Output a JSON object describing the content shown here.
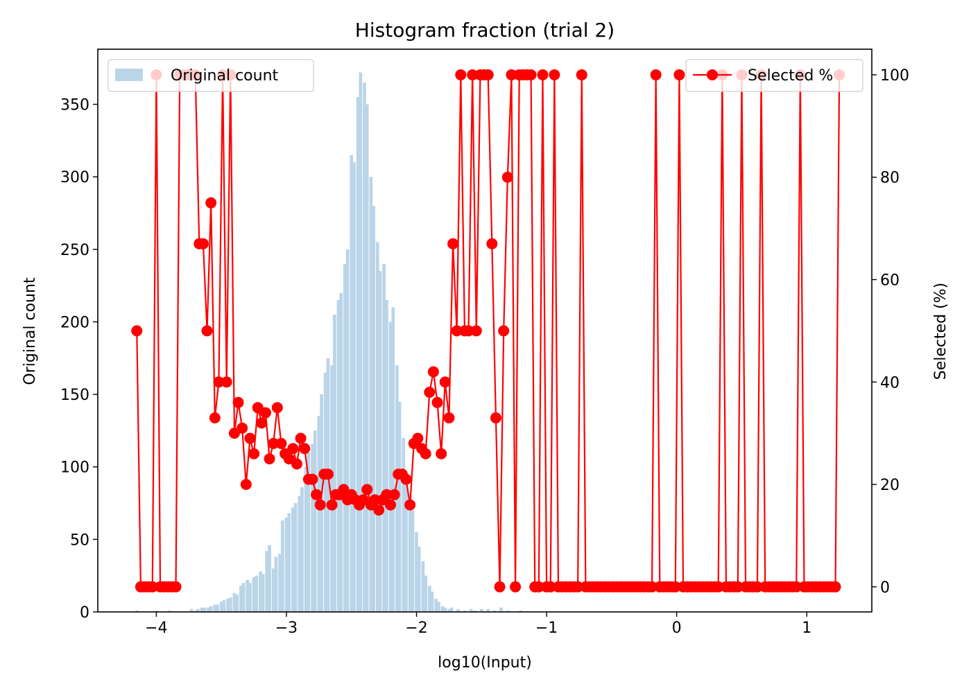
{
  "chart_data": {
    "type": "bar+line",
    "title": "Histogram fraction (trial 2)",
    "xlabel": "log10(Input)",
    "ylabel_left": "Original count",
    "ylabel_right": "Selected (%)",
    "xlim": [
      -4.45,
      1.5
    ],
    "ylim_left": [
      0,
      388
    ],
    "ylim_right": [
      -4.9,
      105
    ],
    "x_ticks": [
      -4,
      -3,
      -2,
      -1,
      0,
      1
    ],
    "x_tick_labels": [
      "−4",
      "−3",
      "−2",
      "−1",
      "0",
      "1"
    ],
    "y_left_ticks": [
      0,
      50,
      100,
      150,
      200,
      250,
      300,
      350
    ],
    "y_left_tick_labels": [
      "0",
      "50",
      "100",
      "150",
      "200",
      "250",
      "300",
      "350"
    ],
    "y_right_ticks": [
      0,
      20,
      40,
      60,
      80,
      100
    ],
    "y_right_tick_labels": [
      "0",
      "20",
      "40",
      "60",
      "80",
      "100"
    ],
    "legend_left": {
      "label": "Original count",
      "placement": "upper-left"
    },
    "legend_right": {
      "label": "Selected %",
      "placement": "upper-right"
    },
    "colors": {
      "histogram": "#bad4e8",
      "line": "#ff0000"
    },
    "histogram": {
      "name": "Original count",
      "bin_width": 0.025,
      "bins": [
        [
          -4.15,
          1
        ],
        [
          -4.0,
          1
        ],
        [
          -3.9,
          1
        ],
        [
          -3.73,
          2
        ],
        [
          -3.7,
          1
        ],
        [
          -3.68,
          2
        ],
        [
          -3.65,
          3
        ],
        [
          -3.63,
          3
        ],
        [
          -3.6,
          3
        ],
        [
          -3.58,
          4
        ],
        [
          -3.55,
          5
        ],
        [
          -3.53,
          5
        ],
        [
          -3.5,
          7
        ],
        [
          -3.48,
          8
        ],
        [
          -3.45,
          9
        ],
        [
          -3.43,
          10
        ],
        [
          -3.4,
          13
        ],
        [
          -3.38,
          12
        ],
        [
          -3.35,
          18
        ],
        [
          -3.33,
          20
        ],
        [
          -3.3,
          22
        ],
        [
          -3.28,
          20
        ],
        [
          -3.25,
          24
        ],
        [
          -3.23,
          25
        ],
        [
          -3.2,
          28
        ],
        [
          -3.18,
          26
        ],
        [
          -3.15,
          42
        ],
        [
          -3.13,
          46
        ],
        [
          -3.1,
          30
        ],
        [
          -3.08,
          38
        ],
        [
          -3.05,
          40
        ],
        [
          -3.03,
          63
        ],
        [
          -3.0,
          65
        ],
        [
          -2.98,
          68
        ],
        [
          -2.95,
          72
        ],
        [
          -2.93,
          75
        ],
        [
          -2.9,
          80
        ],
        [
          -2.88,
          86
        ],
        [
          -2.85,
          100
        ],
        [
          -2.83,
          110
        ],
        [
          -2.8,
          116
        ],
        [
          -2.78,
          125
        ],
        [
          -2.75,
          135
        ],
        [
          -2.73,
          150
        ],
        [
          -2.7,
          165
        ],
        [
          -2.68,
          175
        ],
        [
          -2.65,
          170
        ],
        [
          -2.63,
          205
        ],
        [
          -2.6,
          215
        ],
        [
          -2.58,
          220
        ],
        [
          -2.55,
          240
        ],
        [
          -2.53,
          250
        ],
        [
          -2.5,
          315
        ],
        [
          -2.48,
          310
        ],
        [
          -2.45,
          355
        ],
        [
          -2.43,
          372
        ],
        [
          -2.4,
          365
        ],
        [
          -2.38,
          350
        ],
        [
          -2.35,
          300
        ],
        [
          -2.33,
          280
        ],
        [
          -2.3,
          255
        ],
        [
          -2.28,
          235
        ],
        [
          -2.25,
          240
        ],
        [
          -2.23,
          215
        ],
        [
          -2.2,
          200
        ],
        [
          -2.18,
          210
        ],
        [
          -2.15,
          170
        ],
        [
          -2.13,
          145
        ],
        [
          -2.1,
          120
        ],
        [
          -2.08,
          95
        ],
        [
          -2.05,
          80
        ],
        [
          -2.03,
          70
        ],
        [
          -2.0,
          55
        ],
        [
          -1.98,
          45
        ],
        [
          -1.95,
          35
        ],
        [
          -1.93,
          25
        ],
        [
          -1.9,
          18
        ],
        [
          -1.88,
          14
        ],
        [
          -1.85,
          9
        ],
        [
          -1.83,
          7
        ],
        [
          -1.8,
          4
        ],
        [
          -1.78,
          3
        ],
        [
          -1.75,
          2
        ],
        [
          -1.73,
          3
        ],
        [
          -1.68,
          2
        ],
        [
          -1.63,
          1
        ],
        [
          -1.58,
          2
        ],
        [
          -1.55,
          1
        ],
        [
          -1.5,
          2
        ],
        [
          -1.45,
          2
        ],
        [
          -1.4,
          1
        ],
        [
          -1.35,
          3
        ],
        [
          -1.3,
          1
        ],
        [
          -1.2,
          1
        ]
      ]
    },
    "series": [
      {
        "name": "Selected %",
        "points": [
          [
            -4.15,
            50
          ],
          [
            -4.12,
            0
          ],
          [
            -4.09,
            0
          ],
          [
            -4.06,
            0
          ],
          [
            -4.03,
            0
          ],
          [
            -4.0,
            100
          ],
          [
            -3.97,
            0
          ],
          [
            -3.94,
            0
          ],
          [
            -3.91,
            0
          ],
          [
            -3.88,
            0
          ],
          [
            -3.85,
            0
          ],
          [
            -3.82,
            100
          ],
          [
            -3.79,
            100
          ],
          [
            -3.76,
            100
          ],
          [
            -3.73,
            100
          ],
          [
            -3.7,
            100
          ],
          [
            -3.67,
            67
          ],
          [
            -3.64,
            67
          ],
          [
            -3.61,
            50
          ],
          [
            -3.58,
            75
          ],
          [
            -3.55,
            33
          ],
          [
            -3.52,
            40
          ],
          [
            -3.49,
            100
          ],
          [
            -3.46,
            40
          ],
          [
            -3.43,
            100
          ],
          [
            -3.4,
            30
          ],
          [
            -3.37,
            36
          ],
          [
            -3.34,
            31
          ],
          [
            -3.31,
            20
          ],
          [
            -3.28,
            29
          ],
          [
            -3.25,
            26
          ],
          [
            -3.22,
            35
          ],
          [
            -3.19,
            32
          ],
          [
            -3.16,
            34
          ],
          [
            -3.13,
            25
          ],
          [
            -3.1,
            28
          ],
          [
            -3.07,
            35
          ],
          [
            -3.04,
            28
          ],
          [
            -3.01,
            26
          ],
          [
            -2.98,
            25
          ],
          [
            -2.95,
            27
          ],
          [
            -2.92,
            24
          ],
          [
            -2.89,
            29
          ],
          [
            -2.86,
            27
          ],
          [
            -2.83,
            21
          ],
          [
            -2.8,
            21
          ],
          [
            -2.77,
            18
          ],
          [
            -2.74,
            16
          ],
          [
            -2.71,
            22
          ],
          [
            -2.68,
            22
          ],
          [
            -2.65,
            16
          ],
          [
            -2.62,
            18
          ],
          [
            -2.59,
            18
          ],
          [
            -2.56,
            19
          ],
          [
            -2.53,
            17
          ],
          [
            -2.5,
            18
          ],
          [
            -2.47,
            17
          ],
          [
            -2.44,
            16
          ],
          [
            -2.41,
            17
          ],
          [
            -2.38,
            19
          ],
          [
            -2.35,
            16
          ],
          [
            -2.32,
            17
          ],
          [
            -2.29,
            15
          ],
          [
            -2.26,
            17
          ],
          [
            -2.23,
            18
          ],
          [
            -2.2,
            16
          ],
          [
            -2.17,
            18
          ],
          [
            -2.14,
            22
          ],
          [
            -2.11,
            22
          ],
          [
            -2.08,
            21
          ],
          [
            -2.05,
            16
          ],
          [
            -2.02,
            28
          ],
          [
            -1.99,
            29
          ],
          [
            -1.96,
            27
          ],
          [
            -1.93,
            26
          ],
          [
            -1.9,
            38
          ],
          [
            -1.87,
            42
          ],
          [
            -1.84,
            36
          ],
          [
            -1.81,
            26
          ],
          [
            -1.78,
            40
          ],
          [
            -1.75,
            33
          ],
          [
            -1.72,
            67
          ],
          [
            -1.69,
            50
          ],
          [
            -1.66,
            100
          ],
          [
            -1.63,
            50
          ],
          [
            -1.6,
            50
          ],
          [
            -1.57,
            100
          ],
          [
            -1.54,
            50
          ],
          [
            -1.51,
            100
          ],
          [
            -1.48,
            100
          ],
          [
            -1.45,
            100
          ],
          [
            -1.42,
            67
          ],
          [
            -1.39,
            33
          ],
          [
            -1.36,
            0
          ],
          [
            -1.33,
            50
          ],
          [
            -1.3,
            80
          ],
          [
            -1.27,
            100
          ],
          [
            -1.24,
            0
          ],
          [
            -1.21,
            100
          ],
          [
            -1.18,
            100
          ],
          [
            -1.15,
            100
          ],
          [
            -1.12,
            100
          ],
          [
            -1.09,
            0
          ],
          [
            -1.06,
            0
          ],
          [
            -1.03,
            100
          ],
          [
            -1.0,
            0
          ],
          [
            -0.97,
            0
          ],
          [
            -0.94,
            100
          ],
          [
            -0.91,
            0
          ],
          [
            -0.88,
            0
          ],
          [
            -0.85,
            0
          ],
          [
            -0.82,
            0
          ],
          [
            -0.79,
            0
          ],
          [
            -0.76,
            0
          ],
          [
            -0.73,
            100
          ],
          [
            -0.7,
            0
          ],
          [
            -0.67,
            0
          ],
          [
            -0.64,
            0
          ],
          [
            -0.61,
            0
          ],
          [
            -0.58,
            0
          ],
          [
            -0.55,
            0
          ],
          [
            -0.52,
            0
          ],
          [
            -0.49,
            0
          ],
          [
            -0.46,
            0
          ],
          [
            -0.43,
            0
          ],
          [
            -0.4,
            0
          ],
          [
            -0.37,
            0
          ],
          [
            -0.34,
            0
          ],
          [
            -0.31,
            0
          ],
          [
            -0.28,
            0
          ],
          [
            -0.25,
            0
          ],
          [
            -0.22,
            0
          ],
          [
            -0.19,
            0
          ],
          [
            -0.16,
            100
          ],
          [
            -0.13,
            0
          ],
          [
            -0.1,
            0
          ],
          [
            -0.07,
            0
          ],
          [
            -0.04,
            0
          ],
          [
            -0.01,
            0
          ],
          [
            0.02,
            100
          ],
          [
            0.05,
            0
          ],
          [
            0.08,
            0
          ],
          [
            0.11,
            0
          ],
          [
            0.14,
            0
          ],
          [
            0.17,
            0
          ],
          [
            0.2,
            0
          ],
          [
            0.23,
            0
          ],
          [
            0.26,
            0
          ],
          [
            0.29,
            0
          ],
          [
            0.32,
            0
          ],
          [
            0.35,
            100
          ],
          [
            0.38,
            0
          ],
          [
            0.41,
            0
          ],
          [
            0.44,
            0
          ],
          [
            0.47,
            0
          ],
          [
            0.5,
            100
          ],
          [
            0.53,
            0
          ],
          [
            0.56,
            0
          ],
          [
            0.59,
            0
          ],
          [
            0.62,
            0
          ],
          [
            0.65,
            100
          ],
          [
            0.68,
            0
          ],
          [
            0.71,
            0
          ],
          [
            0.74,
            0
          ],
          [
            0.77,
            0
          ],
          [
            0.8,
            0
          ],
          [
            0.83,
            0
          ],
          [
            0.86,
            0
          ],
          [
            0.89,
            0
          ],
          [
            0.92,
            0
          ],
          [
            0.95,
            100
          ],
          [
            0.98,
            0
          ],
          [
            1.01,
            0
          ],
          [
            1.04,
            0
          ],
          [
            1.07,
            0
          ],
          [
            1.1,
            0
          ],
          [
            1.13,
            0
          ],
          [
            1.16,
            0
          ],
          [
            1.19,
            0
          ],
          [
            1.22,
            0
          ],
          [
            1.25,
            100
          ]
        ]
      }
    ]
  }
}
